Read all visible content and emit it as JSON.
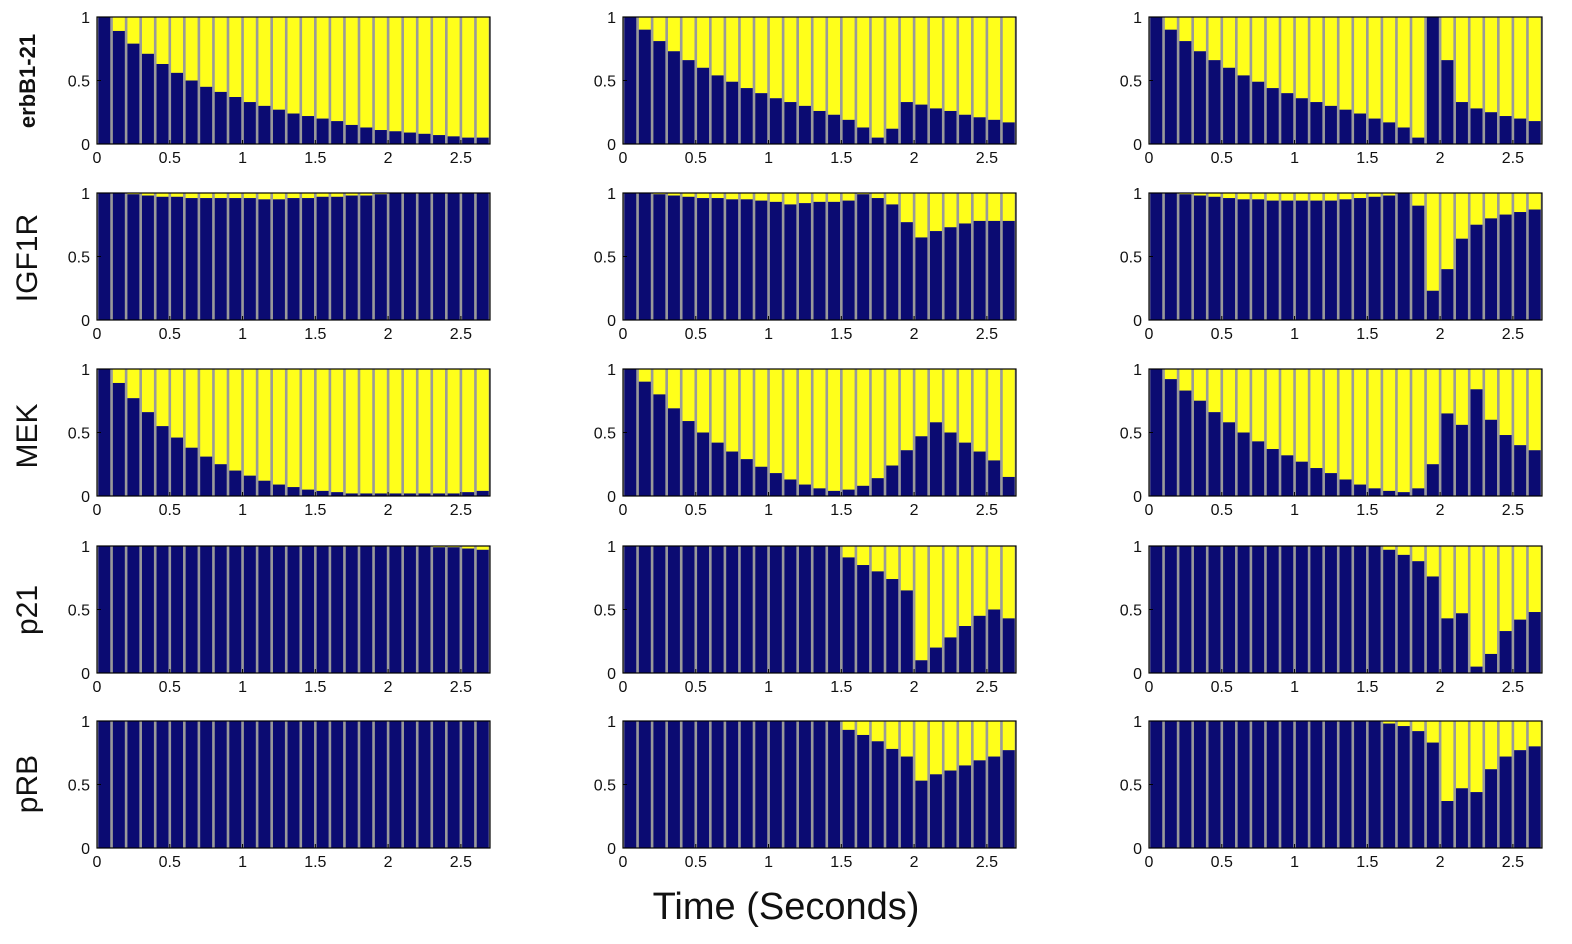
{
  "colors": {
    "bar_bottom": "#0b0b72",
    "bar_top": "#ffff1a",
    "axis": "#000000",
    "gap": "#9a9a9a"
  },
  "figure": {
    "xlabel": "Time (Seconds)"
  },
  "chart_data": {
    "type": "bar",
    "stacked": true,
    "x": [
      0.05,
      0.15,
      0.25,
      0.35,
      0.45,
      0.55,
      0.65,
      0.75,
      0.85,
      0.95,
      1.05,
      1.15,
      1.25,
      1.35,
      1.45,
      1.55,
      1.65,
      1.75,
      1.85,
      1.95,
      2.05,
      2.15,
      2.25,
      2.35,
      2.45,
      2.55,
      2.65
    ],
    "xlim": [
      0,
      2.7
    ],
    "ylim": [
      0,
      1
    ],
    "xticks": [
      "0",
      "0.5",
      "1",
      "1.5",
      "2",
      "2.5"
    ],
    "yticks": [
      "0",
      "0.5",
      "1"
    ],
    "rows": [
      {
        "label": "erbB1-21",
        "panels": [
          [
            1.0,
            0.89,
            0.79,
            0.71,
            0.63,
            0.56,
            0.5,
            0.45,
            0.41,
            0.37,
            0.33,
            0.3,
            0.27,
            0.24,
            0.22,
            0.2,
            0.18,
            0.15,
            0.13,
            0.11,
            0.1,
            0.09,
            0.08,
            0.07,
            0.06,
            0.05,
            0.05
          ],
          [
            1.0,
            0.9,
            0.81,
            0.73,
            0.66,
            0.6,
            0.54,
            0.49,
            0.44,
            0.4,
            0.36,
            0.33,
            0.3,
            0.26,
            0.23,
            0.19,
            0.13,
            0.05,
            0.12,
            0.33,
            0.31,
            0.28,
            0.26,
            0.23,
            0.21,
            0.19,
            0.17
          ],
          [
            1.0,
            0.9,
            0.81,
            0.73,
            0.66,
            0.6,
            0.54,
            0.49,
            0.44,
            0.4,
            0.36,
            0.33,
            0.3,
            0.27,
            0.24,
            0.2,
            0.17,
            0.13,
            0.05,
            1.0,
            0.66,
            0.33,
            0.28,
            0.25,
            0.22,
            0.2,
            0.18
          ]
        ]
      },
      {
        "label": "IGF1R",
        "panels": [
          [
            1.0,
            1.0,
            0.99,
            0.98,
            0.97,
            0.97,
            0.96,
            0.96,
            0.96,
            0.96,
            0.96,
            0.95,
            0.95,
            0.96,
            0.96,
            0.97,
            0.97,
            0.98,
            0.98,
            0.99,
            1.0,
            1.0,
            1.0,
            1.0,
            1.0,
            1.0,
            1.0
          ],
          [
            1.0,
            1.0,
            0.99,
            0.98,
            0.97,
            0.96,
            0.96,
            0.95,
            0.95,
            0.94,
            0.93,
            0.91,
            0.92,
            0.93,
            0.93,
            0.94,
            0.99,
            0.96,
            0.91,
            0.77,
            0.65,
            0.7,
            0.73,
            0.76,
            0.78,
            0.78,
            0.78
          ],
          [
            1.0,
            1.0,
            0.99,
            0.98,
            0.97,
            0.96,
            0.95,
            0.95,
            0.94,
            0.94,
            0.94,
            0.94,
            0.94,
            0.95,
            0.96,
            0.97,
            0.98,
            1.0,
            0.9,
            0.23,
            0.4,
            0.64,
            0.75,
            0.8,
            0.83,
            0.85,
            0.87
          ]
        ]
      },
      {
        "label": "MEK",
        "panels": [
          [
            1.0,
            0.89,
            0.77,
            0.66,
            0.55,
            0.46,
            0.38,
            0.31,
            0.25,
            0.2,
            0.16,
            0.12,
            0.09,
            0.07,
            0.05,
            0.04,
            0.03,
            0.02,
            0.02,
            0.02,
            0.02,
            0.02,
            0.02,
            0.02,
            0.02,
            0.03,
            0.04
          ],
          [
            1.0,
            0.9,
            0.8,
            0.69,
            0.59,
            0.5,
            0.42,
            0.35,
            0.29,
            0.23,
            0.18,
            0.13,
            0.09,
            0.06,
            0.04,
            0.05,
            0.08,
            0.14,
            0.24,
            0.36,
            0.47,
            0.58,
            0.5,
            0.42,
            0.35,
            0.28,
            0.15
          ],
          [
            1.0,
            0.92,
            0.83,
            0.75,
            0.66,
            0.58,
            0.5,
            0.43,
            0.37,
            0.32,
            0.27,
            0.22,
            0.18,
            0.13,
            0.09,
            0.06,
            0.04,
            0.03,
            0.06,
            0.25,
            0.65,
            0.56,
            0.84,
            0.6,
            0.48,
            0.4,
            0.36
          ]
        ]
      },
      {
        "label": "p21",
        "panels": [
          [
            1.0,
            1.0,
            1.0,
            1.0,
            1.0,
            1.0,
            1.0,
            1.0,
            1.0,
            1.0,
            1.0,
            1.0,
            1.0,
            1.0,
            1.0,
            1.0,
            1.0,
            1.0,
            1.0,
            1.0,
            1.0,
            1.0,
            1.0,
            0.99,
            0.99,
            0.98,
            0.97
          ],
          [
            1.0,
            1.0,
            1.0,
            1.0,
            1.0,
            1.0,
            1.0,
            1.0,
            1.0,
            1.0,
            1.0,
            1.0,
            1.0,
            1.0,
            1.0,
            0.91,
            0.85,
            0.8,
            0.74,
            0.65,
            0.1,
            0.2,
            0.28,
            0.37,
            0.45,
            0.5,
            0.43
          ],
          [
            1.0,
            1.0,
            1.0,
            1.0,
            1.0,
            1.0,
            1.0,
            1.0,
            1.0,
            1.0,
            1.0,
            1.0,
            1.0,
            1.0,
            1.0,
            1.0,
            0.97,
            0.93,
            0.88,
            0.76,
            0.43,
            0.47,
            0.05,
            0.15,
            0.33,
            0.42,
            0.48
          ]
        ]
      },
      {
        "label": "pRB",
        "panels": [
          [
            1.0,
            1.0,
            1.0,
            1.0,
            1.0,
            1.0,
            1.0,
            1.0,
            1.0,
            1.0,
            1.0,
            1.0,
            1.0,
            1.0,
            1.0,
            1.0,
            1.0,
            1.0,
            1.0,
            1.0,
            1.0,
            1.0,
            1.0,
            1.0,
            1.0,
            1.0,
            1.0
          ],
          [
            1.0,
            1.0,
            1.0,
            1.0,
            1.0,
            1.0,
            1.0,
            1.0,
            1.0,
            1.0,
            1.0,
            1.0,
            1.0,
            1.0,
            1.0,
            0.93,
            0.89,
            0.84,
            0.78,
            0.72,
            0.53,
            0.58,
            0.61,
            0.65,
            0.69,
            0.72,
            0.77
          ],
          [
            1.0,
            1.0,
            1.0,
            1.0,
            1.0,
            1.0,
            1.0,
            1.0,
            1.0,
            1.0,
            1.0,
            1.0,
            1.0,
            1.0,
            1.0,
            1.0,
            0.98,
            0.96,
            0.92,
            0.83,
            0.37,
            0.47,
            0.44,
            0.62,
            0.72,
            0.77,
            0.8
          ]
        ]
      }
    ]
  }
}
